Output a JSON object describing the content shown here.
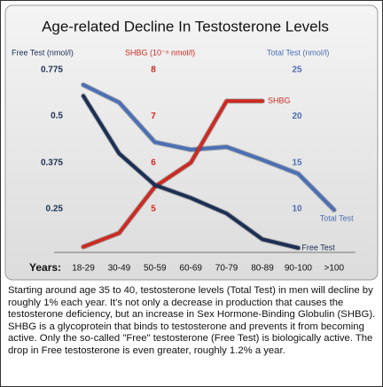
{
  "chart_data": {
    "type": "line",
    "title": "Age-related Decline In Testosterone Levels",
    "x_label": "Years:",
    "categories": [
      "18-29",
      "30-49",
      "50-59",
      "60-69",
      "70-79",
      "80-89",
      "90-100",
      ">100"
    ],
    "y_label": "Free Test (nmol/l)",
    "ylim": [
      0.14,
      0.84
    ],
    "yticks": [
      0.25,
      0.375,
      0.5,
      0.775
    ],
    "y2_label": "SHBG (10⁻⁸ nmol/l)",
    "y2lim": [
      4.1,
      8.25
    ],
    "y2ticks": [
      5,
      6,
      7,
      8
    ],
    "y3_label": "Total Test (nmol/l)",
    "y3lim": [
      5.5,
      26.25
    ],
    "y3ticks": [
      10,
      15,
      20,
      25
    ],
    "grid": false,
    "series": [
      {
        "name": "Total Test",
        "color": "#4a6fb5",
        "axis": "y3",
        "values": [
          23.4,
          21.5,
          17.2,
          16.4,
          16.7,
          15.3,
          13.8,
          9.9
        ]
      },
      {
        "name": "SHBG",
        "color": "#cc2a22",
        "axis": "y2",
        "values": [
          4.18,
          4.48,
          5.48,
          6.0,
          7.33,
          7.33,
          null,
          null
        ]
      },
      {
        "name": "Free Test",
        "color": "#1c2f55",
        "axis": "y",
        "values": [
          0.62,
          0.4,
          0.315,
          0.28,
          0.238,
          0.17,
          0.147,
          null
        ]
      }
    ]
  },
  "caption": "Starting around age 35 to 40, testosterone levels (Total Test) in men will decline by roughly 1% each year. It's not only a decrease in production that causes the testosterone deficiency, but an increase in Sex Hormone-Binding Globulin (SHBG). SHBG is a glycoprotein that binds to testosterone and prevents it from becoming active. Only the so-called \"Free\" testosterone (Free Test) is biologically active. The drop in Free testosterone is even greater, roughly 1.2% a year."
}
